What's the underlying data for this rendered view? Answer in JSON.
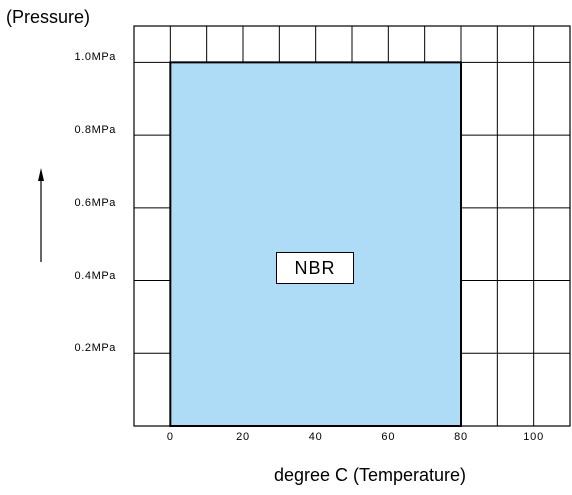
{
  "chart_data": {
    "type": "area",
    "title": "",
    "ylabel": "(Pressure)",
    "xlabel": "degree C (Temperature)",
    "x_ticks": [
      0,
      20,
      40,
      60,
      80,
      100
    ],
    "x_tick_labels": [
      "0",
      "20",
      "40",
      "60",
      "80",
      "100"
    ],
    "y_ticks": [
      0.2,
      0.4,
      0.6,
      0.8,
      1.0
    ],
    "y_tick_labels": [
      "0.2MPa",
      "0.4MPa",
      "0.6MPa",
      "0.8MPa",
      "1.0MPa"
    ],
    "xlim": [
      -10,
      110
    ],
    "ylim": [
      0,
      1.1
    ],
    "grid": true,
    "regions": [
      {
        "label": "NBR",
        "x_range": [
          0,
          80
        ],
        "y_range": [
          0,
          1.0
        ],
        "color": "#aedcf7"
      }
    ]
  }
}
